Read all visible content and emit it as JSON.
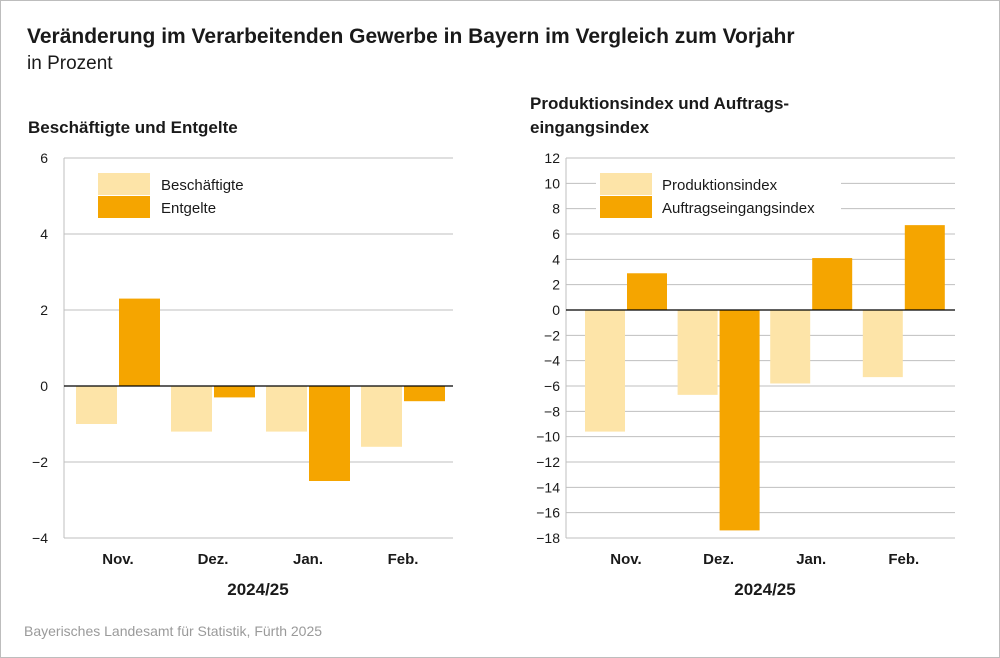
{
  "title": "Veränderung im Verarbeitenden Gewerbe in Bayern im Vergleich zum Vorjahr",
  "subtitle": "in Prozent",
  "source": "Bayerisches Landesamt für Statistik, Fürth 2025",
  "colors": {
    "light": "#fde4a8",
    "dark": "#f5a500",
    "grid": "#bfbfbf",
    "axis": "#000000",
    "text": "#1a1a1a"
  },
  "chart_data": [
    {
      "type": "bar",
      "title": "Beschäftigte und Entgelte",
      "categories": [
        "Nov.",
        "Dez.",
        "Jan.",
        "Feb."
      ],
      "xlabel": "2024/25",
      "ylim": [
        -4,
        6
      ],
      "yticks": [
        -4,
        -2,
        0,
        2,
        4,
        6
      ],
      "ytick_labels": [
        "−4",
        "−2",
        "0",
        "2",
        "4",
        "6"
      ],
      "legend_position": "top-left",
      "grid": true,
      "series": [
        {
          "name": "Beschäftigte",
          "values": [
            -1.0,
            -1.2,
            -1.2,
            -1.6
          ],
          "color": "#fde4a8"
        },
        {
          "name": "Entgelte",
          "values": [
            2.3,
            -0.3,
            -2.5,
            -0.4
          ],
          "color": "#f5a500"
        }
      ]
    },
    {
      "type": "bar",
      "title": "Produktionsindex und Auftrags-\neingangsindex",
      "title_lines": [
        "Produktionsindex und Auftrags-",
        "eingangsindex"
      ],
      "categories": [
        "Nov.",
        "Dez.",
        "Jan.",
        "Feb."
      ],
      "xlabel": "2024/25",
      "ylim": [
        -18,
        12
      ],
      "yticks": [
        -18,
        -16,
        -14,
        -12,
        -10,
        -8,
        -6,
        -4,
        -2,
        0,
        2,
        4,
        6,
        8,
        10,
        12
      ],
      "ytick_labels": [
        "−18",
        "−16",
        "−14",
        "−12",
        "−10",
        "−8",
        "−6",
        "−4",
        "−2",
        "0",
        "2",
        "4",
        "6",
        "8",
        "10",
        "12"
      ],
      "legend_position": "top-left",
      "grid": true,
      "series": [
        {
          "name": "Produktionsindex",
          "values": [
            -9.6,
            -6.7,
            -5.8,
            -5.3
          ],
          "color": "#fde4a8"
        },
        {
          "name": "Auftragseingangsindex",
          "values": [
            2.9,
            -17.4,
            4.1,
            6.7
          ],
          "color": "#f5a500"
        }
      ]
    }
  ]
}
